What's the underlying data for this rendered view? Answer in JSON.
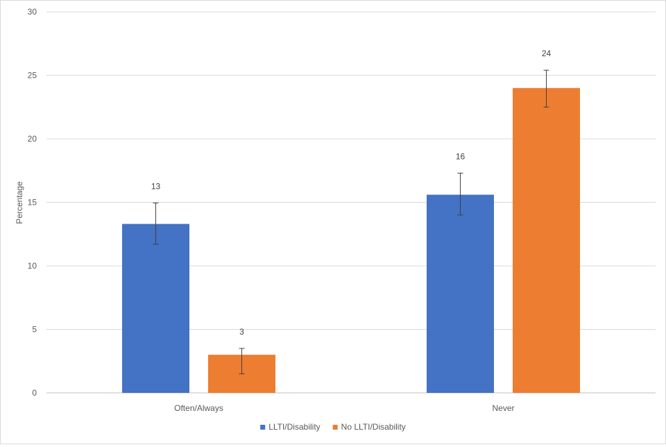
{
  "chart_data": {
    "type": "bar",
    "categories": [
      "Often/Always",
      "Never"
    ],
    "series": [
      {
        "name": "LLTI/Disability",
        "color": "#4472c4",
        "values": [
          13.3,
          15.6
        ],
        "error_low": [
          11.7,
          14.0
        ],
        "error_high": [
          14.95,
          17.3
        ],
        "labels": [
          "13",
          "16"
        ]
      },
      {
        "name": "No LLTI/Disability",
        "color": "#ed7d31",
        "values": [
          3.0,
          24.0
        ],
        "error_low": [
          1.5,
          22.5
        ],
        "error_high": [
          3.5,
          25.4
        ],
        "labels": [
          "3",
          "24"
        ]
      }
    ],
    "title": "",
    "xlabel": "",
    "ylabel": "Percentage",
    "ylim": [
      0,
      30
    ],
    "yticks": [
      0,
      5,
      10,
      15,
      20,
      25,
      30
    ],
    "grid": true,
    "legend_position": "bottom"
  }
}
